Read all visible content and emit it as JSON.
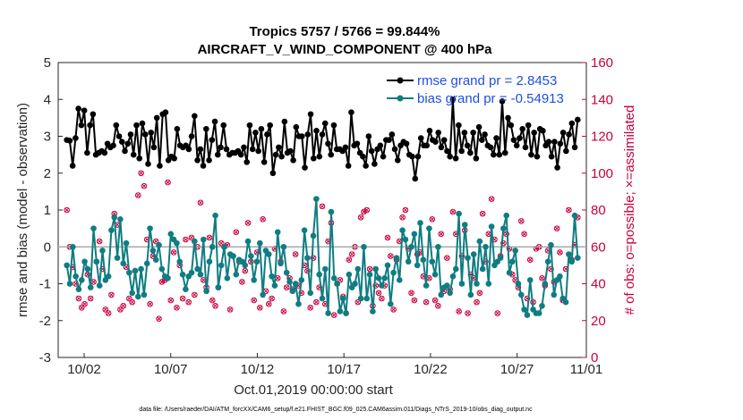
{
  "chart_data": {
    "type": "line",
    "title": "Tropics 5757 / 5766 = 99.844%",
    "subtitle": "AIRCRAFT_V_WIND_COMPONENT @ 400 hPa",
    "xlabel": "Oct.01,2019 00:00:00 start",
    "ylabel": "rmse and bias (model - observation)",
    "y2label": "# of obs: o=possible; ×=assimilated",
    "footnote": "data file: /Users/raeder/DAI/ATM_forcXX/CAM6_setup/f.e21.FHIST_BGC.f09_025.CAM6assim.011/Diags_NTrS_2019-10/obs_diag_output.nc",
    "xlim": [
      0.5,
      31.0
    ],
    "ylim": [
      -3,
      5
    ],
    "y2lim": [
      0,
      160
    ],
    "x_ticks": [
      2,
      7,
      12,
      17,
      22,
      27,
      32
    ],
    "x_tick_labels": [
      "10/02",
      "10/07",
      "10/12",
      "10/17",
      "10/22",
      "10/27",
      "11/01"
    ],
    "y_ticks": [
      -3,
      -2,
      -1,
      0,
      1,
      2,
      3,
      4,
      5
    ],
    "y2_ticks": [
      0,
      20,
      40,
      60,
      80,
      100,
      120,
      140,
      160
    ],
    "series": [
      {
        "name": "rmse grand pr = 2.8453",
        "color": "#000000",
        "values": [
          2.9,
          2.88,
          2.2,
          2.95,
          3.75,
          3.3,
          3.7,
          2.55,
          3.3,
          3.6,
          2.5,
          2.55,
          2.6,
          2.55,
          2.8,
          2.7,
          2.75,
          3.3,
          3.0,
          2.85,
          2.6,
          2.8,
          3.05,
          2.5,
          3.3,
          2.4,
          3.35,
          3.05,
          2.25,
          3.1,
          2.7,
          3.5,
          2.2,
          3.6,
          3.65,
          2.35,
          2.45,
          2.4,
          3.2,
          2.75,
          2.7,
          2.75,
          2.65,
          3.0,
          3.55,
          2.35,
          2.65,
          2.2,
          3.2,
          2.35,
          2.9,
          3.4,
          2.5,
          2.7,
          3.3,
          2.65,
          2.5,
          2.55,
          2.55,
          2.6,
          2.5,
          2.7,
          2.3,
          3.3,
          2.65,
          3.1,
          2.6,
          3.2,
          2.3,
          3.05,
          3.3,
          2.0,
          2.5,
          2.7,
          2.45,
          3.4,
          2.55,
          2.6,
          2.35,
          3.25,
          3.0,
          3.0,
          2.15,
          3.05,
          3.6,
          2.4,
          3.15,
          2.45,
          3.05,
          3.35,
          2.8,
          2.5,
          3.3,
          2.65,
          2.65,
          2.6,
          2.7,
          2.2,
          3.65,
          2.75,
          2.8,
          2.55,
          2.45,
          2.2,
          3.0,
          2.6,
          2.25,
          2.65,
          2.75,
          2.45,
          2.9,
          2.9,
          3.05,
          2.65,
          2.35,
          2.75,
          2.85,
          2.8,
          2.5,
          2.45,
          1.85,
          2.45,
          2.95,
          2.75,
          2.75,
          3.15,
          2.9,
          2.85,
          3.1,
          2.7,
          2.9,
          2.6,
          2.45,
          4.0,
          2.4,
          3.3,
          2.6,
          3.1,
          2.75,
          2.55,
          3.1,
          2.4,
          3.25,
          2.9,
          3.05,
          2.75,
          2.7,
          2.5,
          2.95,
          2.5,
          3.95,
          2.55,
          3.5,
          3.3,
          2.9,
          2.75,
          2.95,
          3.2,
          2.7,
          3.3,
          2.5,
          3.1,
          2.45,
          3.2,
          3.15,
          2.75,
          2.85,
          2.45,
          2.85,
          2.15,
          2.8,
          3.1,
          2.6,
          3.05,
          3.35,
          2.7,
          3.45
        ]
      },
      {
        "name": "bias grand pr = -0.54913",
        "color": "#0f7d82",
        "values": [
          -0.5,
          -1.0,
          0.0,
          -0.8,
          -1.15,
          -0.9,
          -0.4,
          -0.6,
          -1.1,
          0.5,
          -0.4,
          -1.05,
          -0.1,
          -0.9,
          -0.8,
          0.45,
          0.8,
          -0.3,
          0.75,
          -0.45,
          0.1,
          -0.7,
          -1.25,
          -0.65,
          -1.35,
          -0.6,
          -1.3,
          -0.45,
          0.5,
          -0.1,
          -0.35,
          0.05,
          -0.6,
          -0.8,
          -0.85,
          0.35,
          0.2,
          0.1,
          -0.4,
          -0.75,
          -1.15,
          -0.8,
          -0.7,
          0.15,
          -0.6,
          -0.75,
          0.2,
          -1.2,
          -0.4,
          0.0,
          0.85,
          -1.1,
          -0.5,
          0.0,
          -0.85,
          -0.2,
          -0.25,
          -0.75,
          -0.35,
          -0.4,
          -0.5,
          0.15,
          -0.25,
          -0.9,
          -0.4,
          0.1,
          -1.3,
          -0.1,
          -0.2,
          -0.8,
          -1.05,
          0.4,
          -0.45,
          0.0,
          -0.7,
          -0.95,
          -1.2,
          -1.0,
          -1.55,
          -0.9,
          0.45,
          -0.3,
          -1.25,
          0.3,
          1.3,
          -0.75,
          -1.4,
          -0.6,
          -1.8,
          0.95,
          -0.85,
          -1.0,
          -1.75,
          -1.4,
          -1.8,
          -0.75,
          -1.1,
          -1.0,
          -0.6,
          -1.4,
          0.0,
          -1.4,
          -0.75,
          -1.75,
          -0.6,
          -0.85,
          -1.05,
          -0.85,
          -0.5,
          -1.55,
          -0.7,
          -0.3,
          -0.9,
          0.45,
          0.2,
          -0.4,
          0.0,
          0.35,
          -0.5,
          0.65,
          -0.35,
          -1.05,
          0.5,
          -0.4,
          -0.75,
          0.0,
          -1.3,
          -1.1,
          -1.05,
          -1.25,
          -0.8,
          -0.6,
          0.9,
          -1.0,
          0.6,
          -0.3,
          -1.3,
          -0.2,
          -1.0,
          0.15,
          -0.6,
          0.0,
          -1.0,
          0.55,
          -0.5,
          -0.4,
          -0.3,
          0.5,
          0.85,
          -0.7,
          -0.4,
          -0.1,
          -1.0,
          -1.3,
          -1.7,
          -1.85,
          -0.9,
          -1.7,
          -1.8,
          -1.8,
          -1.6,
          -1.0,
          -0.4,
          0.05,
          -1.3,
          -0.9,
          -0.8,
          -1.4,
          -1.5,
          -0.2,
          -0.4,
          0.85,
          -0.3
        ]
      }
    ],
    "obs_counts": [
      80,
      60,
      49,
      40,
      32,
      27,
      29,
      45,
      32,
      41,
      52,
      63,
      48,
      26,
      24,
      34,
      78,
      72,
      26,
      28,
      49,
      32,
      30,
      47,
      88,
      100,
      93,
      64,
      29,
      55,
      63,
      21,
      41,
      42,
      95,
      31,
      57,
      27,
      50,
      32,
      64,
      30,
      65,
      34,
      60,
      84,
      42,
      38,
      65,
      31,
      28,
      38,
      62,
      60,
      61,
      26,
      55,
      68,
      52,
      41,
      47,
      73,
      52,
      31,
      57,
      27,
      75,
      36,
      29,
      32,
      59,
      43,
      52,
      25,
      38,
      43,
      37,
      56,
      39,
      35,
      50,
      47,
      27,
      54,
      30,
      38,
      82,
      29,
      63,
      73,
      23,
      40,
      42,
      33,
      24,
      53,
      56,
      60,
      30,
      76,
      79,
      80,
      48,
      28,
      39,
      35,
      32,
      39,
      65,
      55,
      26,
      53,
      63,
      76,
      80,
      59,
      35,
      31,
      56,
      57,
      44,
      30,
      43,
      75,
      31,
      28,
      67,
      36,
      54,
      37,
      79,
      67,
      25,
      55,
      69,
      24,
      45,
      43,
      30,
      35,
      78,
      52,
      67,
      86,
      64,
      24,
      55,
      62,
      67,
      59,
      45,
      42,
      38,
      74,
      67,
      32,
      53,
      30,
      59,
      60,
      43,
      39,
      58,
      48,
      41,
      70,
      57,
      31,
      48,
      80,
      53,
      61,
      76
    ],
    "obs_marker_color": "#c8003c"
  },
  "zero_line_color": "#aaaaaa"
}
